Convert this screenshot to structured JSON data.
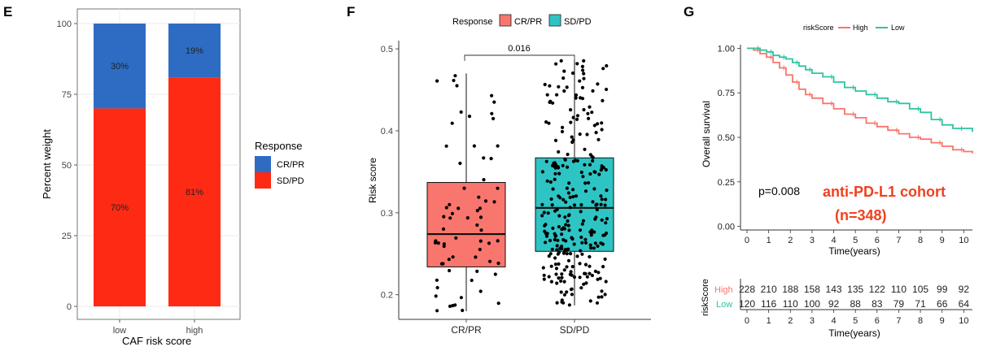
{
  "panels": {
    "E": {
      "letter": "E",
      "chart_data": {
        "type": "bar",
        "stacked": true,
        "categories": [
          "low",
          "high"
        ],
        "series": [
          {
            "name": "SD/PD",
            "values": [
              70,
              81
            ],
            "labels": [
              "70%",
              "81%"
            ],
            "color": "#FF2A14"
          },
          {
            "name": "CR/PR",
            "values": [
              30,
              19
            ],
            "labels": [
              "30%",
              "19%"
            ],
            "color": "#2E6CC4"
          }
        ],
        "xlabel": "CAF risk score",
        "ylabel": "Percent weight",
        "ylim": [
          0,
          100
        ],
        "yticks": [
          0,
          25,
          50,
          75,
          100
        ],
        "grid": true,
        "legend": {
          "title": "Response",
          "items": [
            "CR/PR",
            "SD/PD"
          ],
          "position": "right"
        }
      }
    },
    "F": {
      "letter": "F",
      "chart_data": {
        "type": "box",
        "categories": [
          "CR/PR",
          "SD/PD"
        ],
        "boxes": [
          {
            "name": "CR/PR",
            "min": 0.18,
            "q1": 0.234,
            "median": 0.274,
            "q3": 0.337,
            "max": 0.47,
            "n": 68,
            "color": "#F8766D"
          },
          {
            "name": "SD/PD",
            "min": 0.187,
            "q1": 0.253,
            "median": 0.306,
            "q3": 0.367,
            "max": 0.487,
            "n": 280,
            "color": "#2EC4C4"
          }
        ],
        "ylabel": "Risk score",
        "ylim": [
          0.17,
          0.51
        ],
        "yticks": [
          0.2,
          0.3,
          0.4,
          0.5
        ],
        "annotation": "0.016",
        "legend": {
          "title": "Response",
          "items": [
            "CR/PR",
            "SD/PD"
          ],
          "position": "top"
        },
        "points_note": "individual jittered points: per-sample risk scores"
      }
    },
    "G": {
      "letter": "G",
      "chart_data": {
        "type": "line",
        "step": true,
        "xlabel": "Time(years)",
        "ylabel": "Overall survival",
        "xlim": [
          -0.3,
          10.4
        ],
        "ylim": [
          -0.02,
          1.02
        ],
        "xticks": [
          0,
          1,
          2,
          3,
          4,
          5,
          6,
          7,
          8,
          9,
          10
        ],
        "ytick_labels": [
          "0.00",
          "0.25",
          "0.50",
          "0.75",
          "1.00"
        ],
        "legend": {
          "title": "riskScore",
          "items": [
            "High",
            "Low"
          ],
          "position": "top"
        },
        "series": [
          {
            "name": "High",
            "color": "#F8766D",
            "x": [
              0,
              0.3,
              0.6,
              0.9,
              1.2,
              1.5,
              1.8,
              2.1,
              2.4,
              2.7,
              3.0,
              3.5,
              4.0,
              4.5,
              5.0,
              5.5,
              6.0,
              6.5,
              7.0,
              7.5,
              8.0,
              8.5,
              9.0,
              9.5,
              10.0,
              10.4
            ],
            "y": [
              1.0,
              0.99,
              0.97,
              0.95,
              0.92,
              0.89,
              0.85,
              0.81,
              0.77,
              0.74,
              0.72,
              0.69,
              0.66,
              0.63,
              0.61,
              0.58,
              0.56,
              0.54,
              0.52,
              0.5,
              0.49,
              0.47,
              0.45,
              0.43,
              0.42,
              0.41
            ]
          },
          {
            "name": "Low",
            "color": "#2EC4A0",
            "x": [
              0,
              0.3,
              0.6,
              0.9,
              1.2,
              1.5,
              1.8,
              2.1,
              2.4,
              2.7,
              3.0,
              3.5,
              4.0,
              4.5,
              5.0,
              5.5,
              6.0,
              6.5,
              7.0,
              7.5,
              8.0,
              8.5,
              9.0,
              9.5,
              10.0,
              10.4
            ],
            "y": [
              1.0,
              1.0,
              0.99,
              0.98,
              0.96,
              0.95,
              0.94,
              0.92,
              0.9,
              0.88,
              0.86,
              0.84,
              0.81,
              0.78,
              0.76,
              0.74,
              0.72,
              0.7,
              0.69,
              0.66,
              0.64,
              0.6,
              0.57,
              0.55,
              0.55,
              0.53
            ]
          }
        ],
        "pvalue": "p=0.008",
        "cohort_title": "anti-PD-L1 cohort",
        "cohort_n": "(n=348)",
        "risk_table": {
          "ylabel": "riskScore",
          "rows": [
            {
              "name": "High",
              "color": "#F8766D",
              "values": [
                "228",
                "210",
                "188",
                "158",
                "143",
                "135",
                "122",
                "110",
                "105",
                "99",
                "92"
              ]
            },
            {
              "name": "Low",
              "color": "#2EC4A0",
              "values": [
                "120",
                "116",
                "110",
                "100",
                "92",
                "88",
                "83",
                "79",
                "71",
                "66",
                "64"
              ]
            }
          ],
          "xlabel": "Time(years)"
        }
      }
    }
  }
}
